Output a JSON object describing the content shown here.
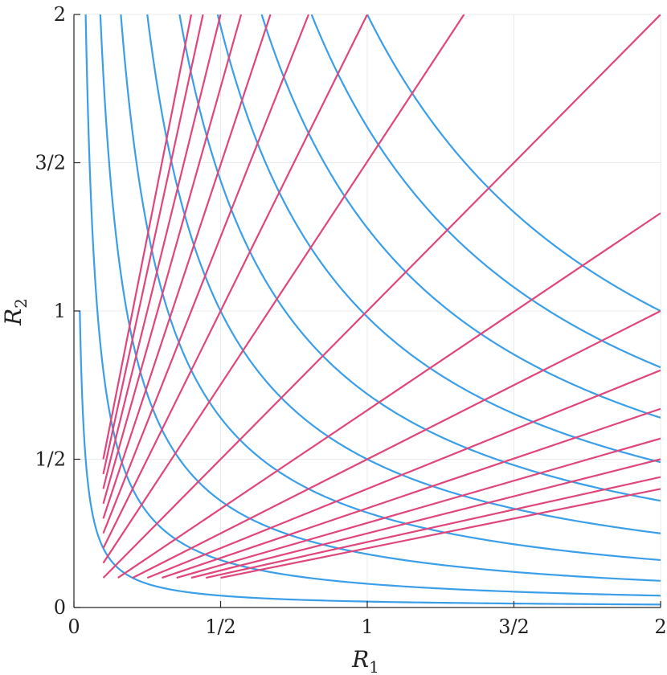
{
  "chart_data": {
    "type": "line",
    "title": "",
    "xlabel": "R",
    "xlabel_sub": "1",
    "ylabel": "R",
    "ylabel_sub": "2",
    "xlim": [
      0,
      2
    ],
    "ylim": [
      0,
      2
    ],
    "xticks": [
      0,
      0.5,
      1,
      1.5,
      2
    ],
    "xtick_labels": [
      "0",
      "1/2",
      "1",
      "3/2",
      "2"
    ],
    "yticks": [
      0,
      0.5,
      1,
      1.5,
      2
    ],
    "ytick_labels": [
      "0",
      "1/2",
      "1",
      "3/2",
      "2"
    ],
    "grid": true,
    "legend": "none",
    "series_groups": [
      {
        "kind": "hyperbola",
        "equation": "R1 * R2 = c",
        "color": "#3a9ee8",
        "x_range": [
          0.02,
          2
        ],
        "constants": [
          0.02,
          0.08,
          0.18,
          0.32,
          0.5,
          0.72,
          0.98,
          1.28,
          1.62,
          2.0
        ]
      },
      {
        "kind": "ray",
        "equation": "R2 = m * R1",
        "color": "#e0457b",
        "endpoints": [
          {
            "start": [
              0.1,
              0.5
            ],
            "end": [
              0.4,
              2.0
            ]
          },
          {
            "start": [
              0.1,
              0.45
            ],
            "end": [
              0.44,
              2.0
            ]
          },
          {
            "start": [
              0.1,
              0.4
            ],
            "end": [
              0.5,
              2.0
            ]
          },
          {
            "start": [
              0.1,
              0.35
            ],
            "end": [
              0.57,
              2.0
            ]
          },
          {
            "start": [
              0.1,
              0.3
            ],
            "end": [
              0.67,
              2.0
            ]
          },
          {
            "start": [
              0.1,
              0.25
            ],
            "end": [
              0.8,
              2.0
            ]
          },
          {
            "start": [
              0.1,
              0.2
            ],
            "end": [
              1.0,
              2.0
            ]
          },
          {
            "start": [
              0.1,
              0.15
            ],
            "end": [
              1.33,
              2.0
            ]
          },
          {
            "start": [
              0.1,
              0.1
            ],
            "end": [
              2.0,
              2.0
            ]
          },
          {
            "start": [
              0.15,
              0.1
            ],
            "end": [
              2.0,
              1.33
            ]
          },
          {
            "start": [
              0.2,
              0.1
            ],
            "end": [
              2.0,
              1.0
            ]
          },
          {
            "start": [
              0.25,
              0.1
            ],
            "end": [
              2.0,
              0.8
            ]
          },
          {
            "start": [
              0.3,
              0.1
            ],
            "end": [
              2.0,
              0.67
            ]
          },
          {
            "start": [
              0.35,
              0.1
            ],
            "end": [
              2.0,
              0.57
            ]
          },
          {
            "start": [
              0.4,
              0.1
            ],
            "end": [
              2.0,
              0.5
            ]
          },
          {
            "start": [
              0.45,
              0.1
            ],
            "end": [
              2.0,
              0.44
            ]
          },
          {
            "start": [
              0.5,
              0.1
            ],
            "end": [
              2.0,
              0.4
            ]
          }
        ]
      }
    ]
  }
}
